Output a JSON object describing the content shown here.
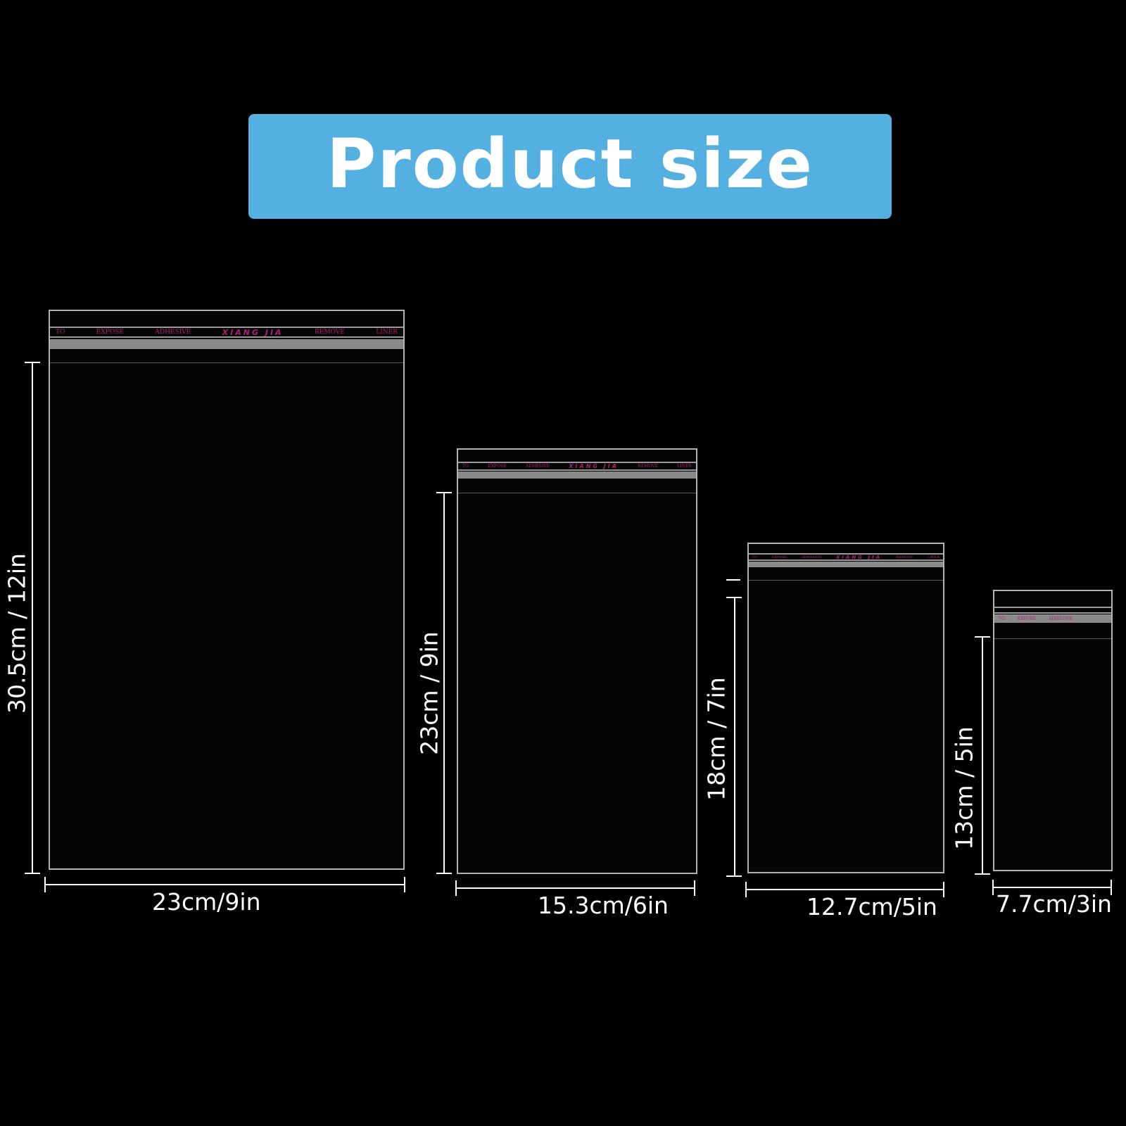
{
  "banner": {
    "title": "Product size"
  },
  "liner_words": {
    "w1": "TO",
    "w2": "EXPOSE",
    "w3": "ADHESIVE",
    "brand": "XIANG JIA",
    "w4": "REMOVE",
    "w5": "LINER"
  },
  "bags": [
    {
      "width_label": "23cm/9in",
      "height_label": "30.5cm / 12in"
    },
    {
      "width_label": "15.3cm/6in",
      "height_label": "23cm / 9in"
    },
    {
      "width_label": "12.7cm/5in",
      "height_label": "18cm / 7in"
    },
    {
      "width_label": "7.7cm/3in",
      "height_label": "13cm / 5in"
    }
  ],
  "colors": {
    "background": "#000000",
    "banner": "#55b0e2",
    "liner_text": "#b01e78",
    "bag_outline": "#b3b3b3"
  }
}
